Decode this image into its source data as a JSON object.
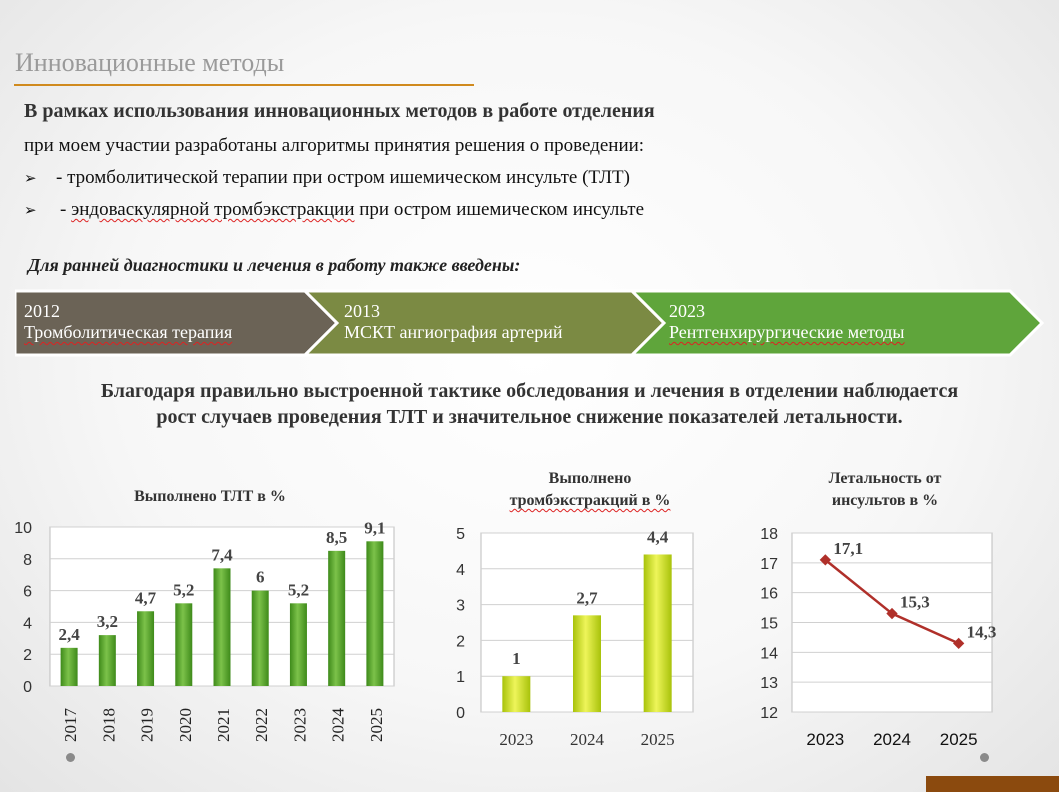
{
  "title": "Инновационные методы",
  "intro": {
    "bold_line": "В рамках использования инновационных методов в работе отделения",
    "normal_line": "при моем участии разработаны алгоритмы принятия решения о проведении:",
    "bullets": [
      {
        "marker": "➢",
        "prefix": "- ",
        "text": "тромболитической терапии при остром ишемическом инсульте (ТЛТ)"
      },
      {
        "marker": "➢",
        "prefix": "- ",
        "text_underlined": "эндоваскулярной тромбэкстракции",
        "text_rest": " при остром ишемическом инсульте"
      }
    ]
  },
  "subtitle": "Для ранней диагностики и лечения в работу также введены:",
  "timeline": [
    {
      "year": "2012",
      "label": "Тромболитическая терапия",
      "color": "#6b6356"
    },
    {
      "year": "2013",
      "label": "МСКТ ангиография артерий",
      "color": "#7b8a43"
    },
    {
      "year": "2023",
      "label": "Рентгенхирургические методы",
      "color": "#5fa53b"
    }
  ],
  "summary": {
    "line1": "Благодаря правильно выстроенной тактике обследования и лечения в отделении наблюдается",
    "line2": "рост случаев проведения ТЛТ и значительное снижение показателей летальности."
  },
  "chart_data": [
    {
      "type": "bar",
      "title": "Выполнено ТЛТ в %",
      "categories": [
        "2017",
        "2018",
        "2019",
        "2020",
        "2021",
        "2022",
        "2023",
        "2024",
        "2025"
      ],
      "values": [
        2.4,
        3.2,
        4.7,
        5.2,
        7.4,
        6,
        5.2,
        8.5,
        9.1
      ],
      "value_labels": [
        "2,4",
        "3,2",
        "4,7",
        "5,2",
        "7,4",
        "6",
        "5,2",
        "8,5",
        "9,1"
      ],
      "yticks": [
        "0",
        "2",
        "4",
        "6",
        "8",
        "10"
      ],
      "ylim": [
        0,
        10
      ],
      "color": "#5aa52a"
    },
    {
      "type": "bar",
      "title_line1": "Выполнено",
      "title_line2": "тромбэкстракций в %",
      "categories": [
        "2023",
        "2024",
        "2025"
      ],
      "values": [
        1,
        2.7,
        4.4
      ],
      "value_labels": [
        "1",
        "2,7",
        "4,4"
      ],
      "yticks": [
        "0",
        "1",
        "2",
        "3",
        "4",
        "5"
      ],
      "ylim": [
        0,
        5
      ],
      "color": "#c8dc1e"
    },
    {
      "type": "line",
      "title_line1": "Летальность от",
      "title_line2": "инсультов в %",
      "categories": [
        "2023",
        "2024",
        "2025"
      ],
      "values": [
        17.1,
        15.3,
        14.3
      ],
      "value_labels": [
        "17,1",
        "15,3",
        "14,3"
      ],
      "yticks": [
        "12",
        "13",
        "14",
        "15",
        "16",
        "17",
        "18"
      ],
      "ylim": [
        12,
        18
      ],
      "color": "#b0302a"
    }
  ]
}
